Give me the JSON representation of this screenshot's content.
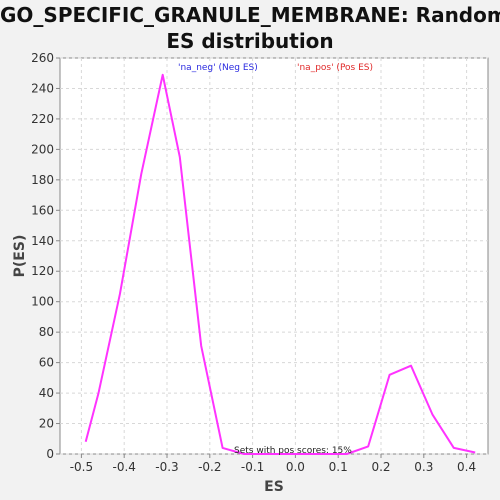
{
  "chart_data": {
    "type": "line",
    "title_lines": [
      "GO_SPECIFIC_GRANULE_MEMBRANE: Random",
      "ES distribution"
    ],
    "xlabel": "ES",
    "ylabel": "P(ES)",
    "xlim": [
      -0.55,
      0.45
    ],
    "ylim": [
      0,
      260
    ],
    "x_ticks": [
      -0.5,
      -0.4,
      -0.3,
      -0.2,
      -0.1,
      0.0,
      0.1,
      0.2,
      0.3,
      0.4
    ],
    "x_tick_labels": [
      "-0.5",
      "-0.4",
      "-0.3",
      "-0.2",
      "-0.1",
      "0.0",
      "0.1",
      "0.2",
      "0.3",
      "0.4"
    ],
    "y_ticks": [
      0,
      20,
      40,
      60,
      80,
      100,
      120,
      140,
      160,
      180,
      200,
      220,
      240,
      260
    ],
    "grid": true,
    "legend": [
      {
        "label": "'na_neg' (Neg ES)",
        "color": "#2a2ae0"
      },
      {
        "label": "'na_pos' (Pos ES)",
        "color": "#e02a2a"
      }
    ],
    "annotation": "Sets with pos scores: 15%",
    "line_color": "#ff33ff",
    "series": [
      {
        "x": [
          -0.49,
          -0.46,
          -0.41,
          -0.36,
          -0.31,
          -0.27,
          -0.22,
          -0.17,
          -0.12,
          0.12,
          0.17,
          0.22,
          0.27,
          0.32,
          0.37,
          0.42
        ],
        "y": [
          8,
          40,
          105,
          184,
          249,
          195,
          71,
          4,
          0,
          0,
          5,
          52,
          58,
          26,
          4,
          1
        ]
      }
    ]
  }
}
